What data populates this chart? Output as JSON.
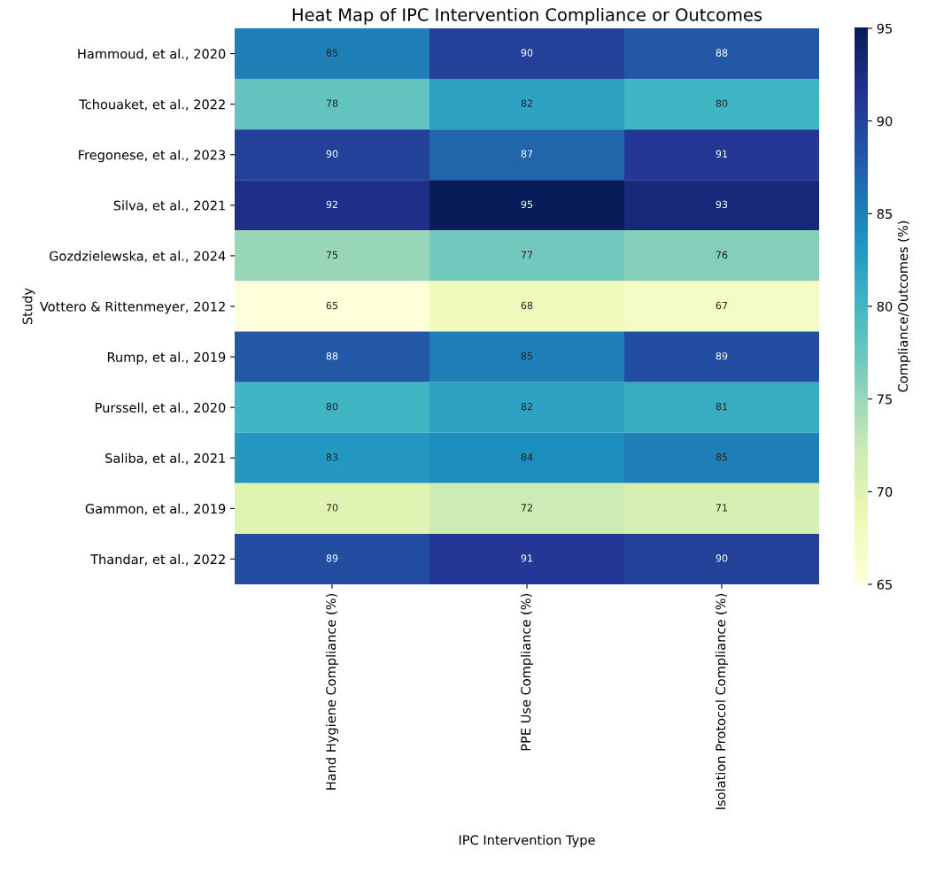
{
  "chart_data": {
    "type": "heatmap",
    "title": "Heat Map of IPC Intervention Compliance or Outcomes",
    "xlabel": "IPC Intervention Type",
    "ylabel": "Study",
    "clabel": "Compliance/Outcomes (%)",
    "categories": [
      "Hand Hygiene Compliance (%)",
      "PPE Use Compliance (%)",
      "Isolation Protocol Compliance (%)"
    ],
    "y_categories": [
      "Hammoud, et al., 2020",
      "Tchouaket, et al., 2022",
      "Fregonese, et al., 2023",
      "Silva, et al., 2021",
      "Gozdzielewska, et al., 2024",
      "Vottero & Rittenmeyer, 2012",
      "Rump, et al., 2019",
      "Purssell, et al., 2020",
      "Saliba, et al., 2021",
      "Gammon, et al., 2019",
      "Thandar, et al., 2022"
    ],
    "cells": [
      [
        85,
        90,
        88
      ],
      [
        78,
        82,
        80
      ],
      [
        90,
        87,
        91
      ],
      [
        92,
        95,
        93
      ],
      [
        75,
        77,
        76
      ],
      [
        65,
        68,
        67
      ],
      [
        88,
        85,
        89
      ],
      [
        80,
        82,
        81
      ],
      [
        83,
        84,
        85
      ],
      [
        70,
        72,
        71
      ],
      [
        89,
        91,
        90
      ]
    ],
    "data_labels": true,
    "clim": [
      65,
      95
    ],
    "cticks": [
      65,
      70,
      75,
      80,
      85,
      90,
      95
    ]
  }
}
